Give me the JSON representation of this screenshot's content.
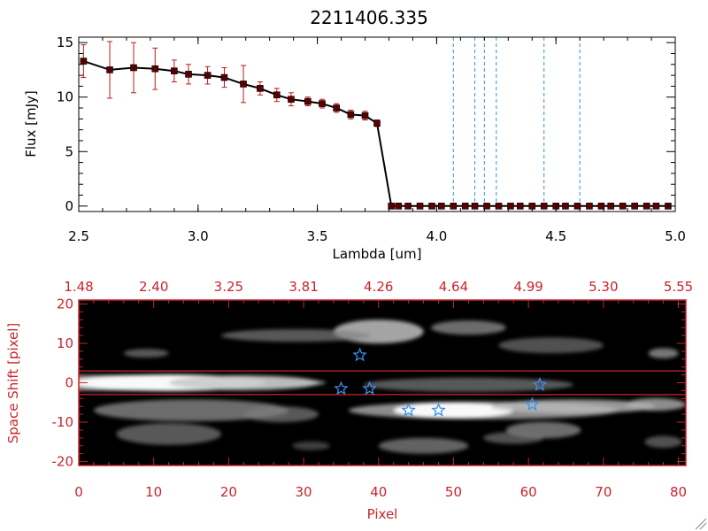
{
  "title": "2211406.335",
  "colors": {
    "spectrum_line": "#000000",
    "error_bars": "#c01818",
    "markers": "#5a0000",
    "vlines": "#3a8fd8",
    "red_axis": "#c8242c",
    "stars": "#3a8fe8",
    "image_bg": "#000000"
  },
  "chart_data": [
    {
      "type": "line",
      "title": "2211406.335",
      "xlabel": "Lambda [um]",
      "ylabel": "Flux [mJy]",
      "xlim": [
        2.5,
        5.0
      ],
      "ylim": [
        -0.5,
        15.5
      ],
      "x_ticks": [
        2.5,
        3.0,
        3.5,
        4.0,
        4.5,
        5.0
      ],
      "x_tick_labels": [
        "2.5",
        "3.0",
        "3.5",
        "4.0",
        "4.5",
        "5.0"
      ],
      "y_ticks": [
        0,
        5,
        10,
        15
      ],
      "y_tick_labels": [
        "0",
        "5",
        "10",
        "15"
      ],
      "series": [
        {
          "name": "flux",
          "x": [
            2.52,
            2.63,
            2.73,
            2.82,
            2.9,
            2.96,
            3.04,
            3.11,
            3.19,
            3.26,
            3.33,
            3.39,
            3.46,
            3.52,
            3.58,
            3.64,
            3.7,
            3.75,
            3.81
          ],
          "y": [
            13.3,
            12.5,
            12.7,
            12.6,
            12.4,
            12.1,
            12.0,
            11.8,
            11.2,
            10.8,
            10.2,
            9.8,
            9.6,
            9.4,
            9.0,
            8.4,
            8.3,
            7.6,
            0.0
          ],
          "err": [
            1.5,
            2.6,
            2.3,
            1.9,
            1.0,
            0.9,
            0.8,
            0.9,
            1.7,
            0.6,
            0.6,
            0.6,
            0.4,
            0.4,
            0.4,
            0.4,
            0.4,
            0.3,
            0.0
          ]
        },
        {
          "name": "zero-flux",
          "x": [
            3.84,
            3.88,
            3.93,
            3.98,
            4.02,
            4.07,
            4.12,
            4.16,
            4.21,
            4.26,
            4.31,
            4.35,
            4.4,
            4.45,
            4.5,
            4.54,
            4.59,
            4.64,
            4.69,
            4.73,
            4.78,
            4.83,
            4.88,
            4.92,
            4.97
          ],
          "y": [
            0.0,
            0.0,
            0.0,
            0.0,
            0.0,
            0.0,
            0.0,
            0.0,
            0.0,
            0.0,
            0.0,
            0.0,
            0.0,
            0.0,
            0.0,
            0.0,
            0.0,
            0.0,
            0.0,
            0.0,
            0.0,
            0.0,
            0.0,
            0.0,
            0.0
          ]
        }
      ],
      "reference_lines_x": [
        4.07,
        4.16,
        4.2,
        4.25,
        4.45,
        4.6
      ]
    },
    {
      "type": "heatmap",
      "xlabel": "Pixel",
      "ylabel": "Space Shift [pixel]",
      "xlim": [
        0,
        81
      ],
      "ylim": [
        -21,
        21
      ],
      "x_ticks": [
        0,
        10,
        20,
        30,
        40,
        50,
        60,
        70,
        80
      ],
      "x_tick_labels": [
        "0",
        "10",
        "20",
        "30",
        "40",
        "50",
        "60",
        "70",
        "80"
      ],
      "y_ticks": [
        -20,
        -10,
        0,
        10,
        20
      ],
      "y_tick_labels": [
        "-20",
        "-10",
        "0",
        "10",
        "20"
      ],
      "top_axis_ticks": [
        0,
        10,
        20,
        30,
        40,
        50,
        60,
        70,
        80
      ],
      "top_axis_labels": [
        "1.48",
        "2.40",
        "3.25",
        "3.81",
        "4.26",
        "4.64",
        "4.99",
        "5.30",
        "5.55"
      ],
      "slit_lines_y": [
        3,
        -3
      ],
      "stars": [
        {
          "x": 37.5,
          "y": 7
        },
        {
          "x": 35,
          "y": -1.5
        },
        {
          "x": 38.8,
          "y": -1.5
        },
        {
          "x": 61.5,
          "y": -0.5
        },
        {
          "x": 44,
          "y": -7
        },
        {
          "x": 48,
          "y": -7
        },
        {
          "x": 60.5,
          "y": -5.5
        }
      ],
      "blobs": [
        {
          "x": 3,
          "y": 0,
          "w": 60,
          "h": 4.0,
          "v": 0.6
        },
        {
          "x": 12,
          "y": 0,
          "w": 26,
          "h": 4.2,
          "v": 1.0
        },
        {
          "x": 22,
          "y": 0,
          "w": 20,
          "h": 3.8,
          "v": 0.7
        },
        {
          "x": 52,
          "y": -0.5,
          "w": 28,
          "h": 3.6,
          "v": 0.35
        },
        {
          "x": 40,
          "y": 13,
          "w": 12,
          "h": 6.0,
          "v": 0.7
        },
        {
          "x": 29,
          "y": 12,
          "w": 20,
          "h": 3.2,
          "v": 0.35
        },
        {
          "x": 52,
          "y": 14,
          "w": 10,
          "h": 3.6,
          "v": 0.45
        },
        {
          "x": 63,
          "y": 9.5,
          "w": 14,
          "h": 4.0,
          "v": 0.3
        },
        {
          "x": 9,
          "y": 7.5,
          "w": 6,
          "h": 2.2,
          "v": 0.35
        },
        {
          "x": 78,
          "y": 7.5,
          "w": 4,
          "h": 2.6,
          "v": 0.5
        },
        {
          "x": 54,
          "y": -7,
          "w": 36,
          "h": 4.5,
          "v": 0.6
        },
        {
          "x": 50,
          "y": -7,
          "w": 16,
          "h": 4.0,
          "v": 1.0
        },
        {
          "x": 66,
          "y": -6,
          "w": 22,
          "h": 3.5,
          "v": 0.65
        },
        {
          "x": 77,
          "y": -5.5,
          "w": 8,
          "h": 3.2,
          "v": 0.6
        },
        {
          "x": 15,
          "y": -7,
          "w": 26,
          "h": 5.5,
          "v": 0.45
        },
        {
          "x": 12,
          "y": -13,
          "w": 14,
          "h": 5.5,
          "v": 0.35
        },
        {
          "x": 27,
          "y": -8,
          "w": 10,
          "h": 4.0,
          "v": 0.35
        },
        {
          "x": 46,
          "y": -16,
          "w": 12,
          "h": 4.0,
          "v": 0.4
        },
        {
          "x": 62,
          "y": -12,
          "w": 10,
          "h": 4.2,
          "v": 0.45
        },
        {
          "x": 58,
          "y": -14,
          "w": 8,
          "h": 3.0,
          "v": 0.3
        },
        {
          "x": 78,
          "y": -15,
          "w": 5,
          "h": 3.0,
          "v": 0.3
        },
        {
          "x": 31,
          "y": -16,
          "w": 5,
          "h": 2.2,
          "v": 0.2
        }
      ]
    }
  ]
}
